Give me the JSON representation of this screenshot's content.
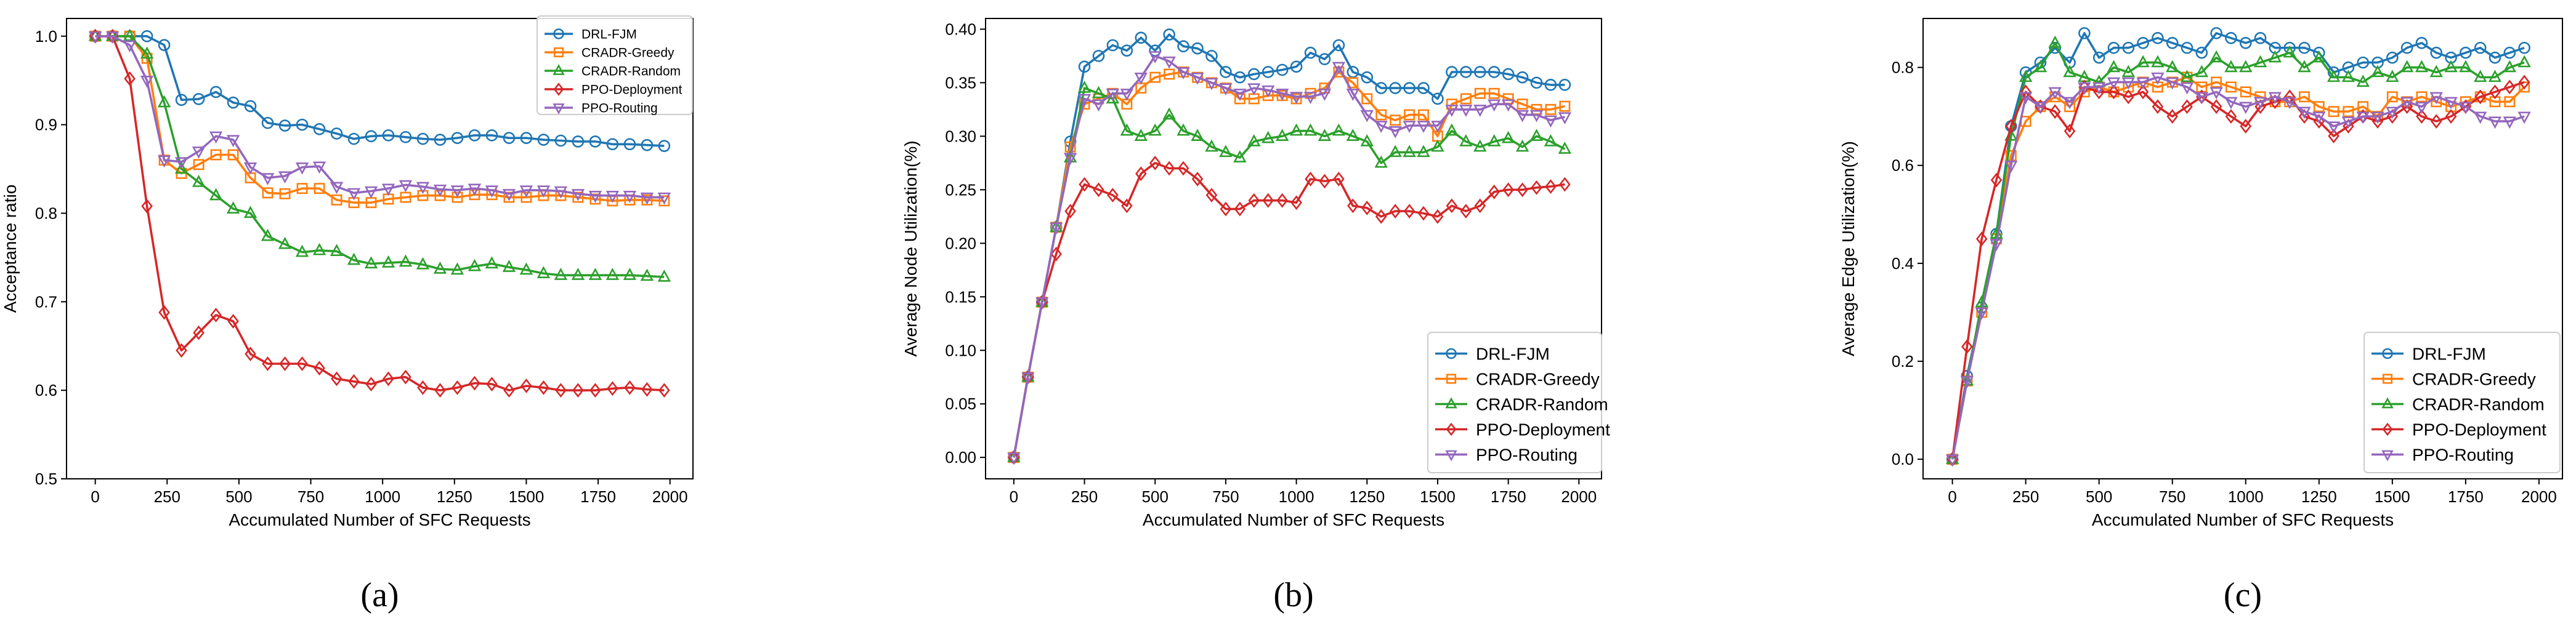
{
  "series_style": [
    {
      "name": "DRL-FJM",
      "color": "#1f77b4",
      "marker": "circle"
    },
    {
      "name": "CRADR-Greedy",
      "color": "#ff7f0e",
      "marker": "square"
    },
    {
      "name": "CRADR-Random",
      "color": "#2ca02c",
      "marker": "triangle-up"
    },
    {
      "name": "PPO-Deployment",
      "color": "#d62728",
      "marker": "diamond"
    },
    {
      "name": "PPO-Routing",
      "color": "#9467bd",
      "marker": "triangle-down"
    }
  ],
  "chart_data": [
    {
      "id": "a",
      "type": "line",
      "caption": "(a)",
      "title": "",
      "xlabel": "Accumulated Number of SFC Requests",
      "ylabel": "Acceptance ratio",
      "xlim": [
        -100,
        2080
      ],
      "ylim": [
        0.5,
        1.02
      ],
      "xticks": [
        0,
        250,
        500,
        750,
        1000,
        1250,
        1500,
        1750,
        2000
      ],
      "yticks": [
        0.5,
        0.6,
        0.7,
        0.8,
        0.9,
        1.0
      ],
      "ytick_labels": [
        "0.5",
        "0.6",
        "0.7",
        "0.8",
        "0.9",
        "1.0"
      ],
      "legend": "top-right",
      "x": [
        0,
        60,
        120,
        180,
        240,
        300,
        360,
        420,
        480,
        540,
        600,
        660,
        720,
        780,
        840,
        900,
        960,
        1020,
        1080,
        1140,
        1200,
        1260,
        1320,
        1380,
        1440,
        1500,
        1560,
        1620,
        1680,
        1740,
        1800,
        1860,
        1920,
        1980
      ],
      "series": [
        {
          "name": "DRL-FJM",
          "values": [
            1.0,
            1.0,
            1.0,
            1.0,
            0.99,
            0.928,
            0.929,
            0.937,
            0.925,
            0.921,
            0.902,
            0.899,
            0.9,
            0.895,
            0.89,
            0.884,
            0.887,
            0.888,
            0.886,
            0.884,
            0.883,
            0.885,
            0.888,
            0.888,
            0.885,
            0.885,
            0.883,
            0.882,
            0.881,
            0.881,
            0.878,
            0.878,
            0.877,
            0.876
          ]
        },
        {
          "name": "CRADR-Greedy",
          "values": [
            1.0,
            1.0,
            1.0,
            0.975,
            0.86,
            0.845,
            0.855,
            0.866,
            0.866,
            0.84,
            0.823,
            0.822,
            0.828,
            0.828,
            0.815,
            0.812,
            0.812,
            0.816,
            0.818,
            0.82,
            0.82,
            0.818,
            0.821,
            0.821,
            0.818,
            0.818,
            0.82,
            0.82,
            0.818,
            0.816,
            0.814,
            0.815,
            0.815,
            0.814
          ]
        },
        {
          "name": "CRADR-Random",
          "values": [
            1.0,
            1.0,
            1.0,
            0.98,
            0.925,
            0.85,
            0.835,
            0.82,
            0.805,
            0.8,
            0.774,
            0.765,
            0.756,
            0.758,
            0.757,
            0.747,
            0.743,
            0.744,
            0.745,
            0.742,
            0.737,
            0.736,
            0.74,
            0.743,
            0.739,
            0.736,
            0.732,
            0.73,
            0.73,
            0.73,
            0.73,
            0.73,
            0.729,
            0.728
          ]
        },
        {
          "name": "PPO-Deployment",
          "values": [
            1.0,
            1.0,
            0.952,
            0.808,
            0.688,
            0.645,
            0.665,
            0.685,
            0.678,
            0.641,
            0.63,
            0.63,
            0.63,
            0.625,
            0.613,
            0.61,
            0.607,
            0.613,
            0.615,
            0.603,
            0.6,
            0.603,
            0.608,
            0.607,
            0.6,
            0.605,
            0.603,
            0.6,
            0.6,
            0.6,
            0.602,
            0.603,
            0.601,
            0.6
          ]
        },
        {
          "name": "PPO-Routing",
          "values": [
            1.0,
            1.0,
            0.99,
            0.95,
            0.86,
            0.858,
            0.87,
            0.887,
            0.883,
            0.852,
            0.84,
            0.842,
            0.852,
            0.853,
            0.83,
            0.823,
            0.825,
            0.828,
            0.832,
            0.83,
            0.827,
            0.826,
            0.828,
            0.826,
            0.822,
            0.826,
            0.826,
            0.825,
            0.822,
            0.82,
            0.82,
            0.82,
            0.818,
            0.818
          ]
        }
      ]
    },
    {
      "id": "b",
      "type": "line",
      "caption": "(b)",
      "title": "",
      "xlabel": "Accumulated Number of SFC Requests",
      "ylabel": "Average Node Utilization(%)",
      "xlim": [
        -100,
        2080
      ],
      "ylim": [
        -0.02,
        0.41
      ],
      "xticks": [
        0,
        250,
        500,
        750,
        1000,
        1250,
        1500,
        1750,
        2000
      ],
      "yticks": [
        0.0,
        0.05,
        0.1,
        0.15,
        0.2,
        0.25,
        0.3,
        0.35,
        0.4
      ],
      "ytick_labels": [
        "0.00",
        "0.05",
        "0.10",
        "0.15",
        "0.20",
        "0.25",
        "0.30",
        "0.35",
        "0.40"
      ],
      "legend": "bottom-right",
      "x": [
        0,
        50,
        100,
        150,
        200,
        250,
        300,
        350,
        400,
        450,
        500,
        550,
        600,
        650,
        700,
        750,
        800,
        850,
        900,
        950,
        1000,
        1050,
        1100,
        1150,
        1200,
        1250,
        1300,
        1350,
        1400,
        1450,
        1500,
        1550,
        1600,
        1650,
        1700,
        1750,
        1800,
        1850,
        1900,
        1950
      ],
      "series": [
        {
          "name": "DRL-FJM",
          "values": [
            0.0,
            0.075,
            0.145,
            0.215,
            0.295,
            0.365,
            0.375,
            0.385,
            0.38,
            0.392,
            0.38,
            0.395,
            0.384,
            0.382,
            0.375,
            0.36,
            0.355,
            0.358,
            0.36,
            0.362,
            0.365,
            0.378,
            0.372,
            0.385,
            0.36,
            0.355,
            0.345,
            0.345,
            0.345,
            0.345,
            0.335,
            0.36,
            0.36,
            0.36,
            0.36,
            0.358,
            0.355,
            0.35,
            0.348,
            0.348
          ]
        },
        {
          "name": "CRADR-Greedy",
          "values": [
            0.0,
            0.075,
            0.145,
            0.215,
            0.29,
            0.33,
            0.335,
            0.34,
            0.33,
            0.345,
            0.355,
            0.358,
            0.36,
            0.355,
            0.35,
            0.345,
            0.335,
            0.335,
            0.338,
            0.338,
            0.335,
            0.34,
            0.345,
            0.36,
            0.35,
            0.335,
            0.32,
            0.315,
            0.32,
            0.32,
            0.3,
            0.33,
            0.335,
            0.34,
            0.34,
            0.335,
            0.33,
            0.325,
            0.325,
            0.328
          ]
        },
        {
          "name": "CRADR-Random",
          "values": [
            0.0,
            0.075,
            0.145,
            0.215,
            0.28,
            0.345,
            0.34,
            0.335,
            0.305,
            0.3,
            0.305,
            0.32,
            0.305,
            0.3,
            0.29,
            0.285,
            0.28,
            0.295,
            0.298,
            0.3,
            0.305,
            0.305,
            0.3,
            0.305,
            0.3,
            0.295,
            0.275,
            0.285,
            0.285,
            0.285,
            0.29,
            0.305,
            0.295,
            0.29,
            0.295,
            0.298,
            0.29,
            0.3,
            0.295,
            0.288
          ]
        },
        {
          "name": "PPO-Deployment",
          "values": [
            0.0,
            0.075,
            0.145,
            0.19,
            0.23,
            0.255,
            0.25,
            0.245,
            0.235,
            0.265,
            0.275,
            0.27,
            0.27,
            0.26,
            0.245,
            0.232,
            0.232,
            0.24,
            0.24,
            0.24,
            0.238,
            0.26,
            0.258,
            0.26,
            0.235,
            0.233,
            0.225,
            0.23,
            0.23,
            0.228,
            0.225,
            0.235,
            0.23,
            0.235,
            0.248,
            0.25,
            0.25,
            0.252,
            0.253,
            0.255
          ]
        },
        {
          "name": "PPO-Routing",
          "values": [
            0.0,
            0.075,
            0.145,
            0.215,
            0.28,
            0.335,
            0.33,
            0.34,
            0.34,
            0.355,
            0.375,
            0.37,
            0.36,
            0.355,
            0.35,
            0.345,
            0.34,
            0.345,
            0.343,
            0.34,
            0.337,
            0.337,
            0.34,
            0.365,
            0.34,
            0.32,
            0.31,
            0.305,
            0.31,
            0.31,
            0.31,
            0.325,
            0.325,
            0.325,
            0.33,
            0.33,
            0.32,
            0.32,
            0.315,
            0.318
          ]
        }
      ]
    },
    {
      "id": "c",
      "type": "line",
      "caption": "(c)",
      "title": "",
      "xlabel": "Accumulated Number of SFC Requests",
      "ylabel": "Average Edge Utilization(%)",
      "xlim": [
        -100,
        2080
      ],
      "ylim": [
        -0.04,
        0.9
      ],
      "xticks": [
        0,
        250,
        500,
        750,
        1000,
        1250,
        1500,
        1750,
        2000
      ],
      "yticks": [
        0.0,
        0.2,
        0.4,
        0.6,
        0.8
      ],
      "ytick_labels": [
        "0.0",
        "0.2",
        "0.4",
        "0.6",
        "0.8"
      ],
      "legend": "bottom-right",
      "x": [
        0,
        50,
        100,
        150,
        200,
        250,
        300,
        350,
        400,
        450,
        500,
        550,
        600,
        650,
        700,
        750,
        800,
        850,
        900,
        950,
        1000,
        1050,
        1100,
        1150,
        1200,
        1250,
        1300,
        1350,
        1400,
        1450,
        1500,
        1550,
        1600,
        1650,
        1700,
        1750,
        1800,
        1850,
        1900,
        1950
      ],
      "series": [
        {
          "name": "DRL-FJM",
          "values": [
            0.0,
            0.17,
            0.31,
            0.46,
            0.68,
            0.79,
            0.81,
            0.84,
            0.81,
            0.87,
            0.82,
            0.84,
            0.84,
            0.85,
            0.86,
            0.85,
            0.84,
            0.83,
            0.87,
            0.86,
            0.85,
            0.86,
            0.84,
            0.84,
            0.84,
            0.83,
            0.79,
            0.8,
            0.81,
            0.81,
            0.82,
            0.84,
            0.85,
            0.83,
            0.82,
            0.83,
            0.84,
            0.82,
            0.83,
            0.84
          ]
        },
        {
          "name": "CRADR-Greedy",
          "values": [
            0.0,
            0.16,
            0.3,
            0.45,
            0.62,
            0.69,
            0.72,
            0.74,
            0.72,
            0.75,
            0.76,
            0.75,
            0.76,
            0.77,
            0.76,
            0.77,
            0.78,
            0.76,
            0.77,
            0.76,
            0.75,
            0.74,
            0.73,
            0.73,
            0.74,
            0.72,
            0.71,
            0.71,
            0.72,
            0.7,
            0.74,
            0.73,
            0.74,
            0.73,
            0.72,
            0.73,
            0.74,
            0.73,
            0.73,
            0.76
          ]
        },
        {
          "name": "CRADR-Random",
          "values": [
            0.0,
            0.16,
            0.32,
            0.46,
            0.66,
            0.78,
            0.8,
            0.85,
            0.79,
            0.78,
            0.77,
            0.8,
            0.79,
            0.81,
            0.81,
            0.8,
            0.78,
            0.79,
            0.82,
            0.8,
            0.8,
            0.81,
            0.82,
            0.83,
            0.8,
            0.82,
            0.78,
            0.78,
            0.77,
            0.79,
            0.78,
            0.8,
            0.8,
            0.79,
            0.8,
            0.8,
            0.78,
            0.78,
            0.8,
            0.81
          ]
        },
        {
          "name": "PPO-Deployment",
          "values": [
            0.0,
            0.23,
            0.45,
            0.57,
            0.68,
            0.75,
            0.72,
            0.71,
            0.67,
            0.76,
            0.75,
            0.75,
            0.74,
            0.75,
            0.72,
            0.7,
            0.72,
            0.74,
            0.72,
            0.7,
            0.68,
            0.72,
            0.73,
            0.74,
            0.7,
            0.69,
            0.66,
            0.68,
            0.7,
            0.69,
            0.7,
            0.72,
            0.7,
            0.69,
            0.7,
            0.72,
            0.74,
            0.75,
            0.76,
            0.77
          ]
        },
        {
          "name": "PPO-Routing",
          "values": [
            0.0,
            0.16,
            0.3,
            0.44,
            0.6,
            0.74,
            0.72,
            0.75,
            0.73,
            0.76,
            0.76,
            0.77,
            0.77,
            0.77,
            0.78,
            0.77,
            0.76,
            0.74,
            0.75,
            0.73,
            0.72,
            0.73,
            0.74,
            0.73,
            0.71,
            0.7,
            0.68,
            0.69,
            0.7,
            0.7,
            0.71,
            0.73,
            0.72,
            0.74,
            0.73,
            0.72,
            0.7,
            0.69,
            0.69,
            0.7
          ]
        }
      ]
    }
  ]
}
